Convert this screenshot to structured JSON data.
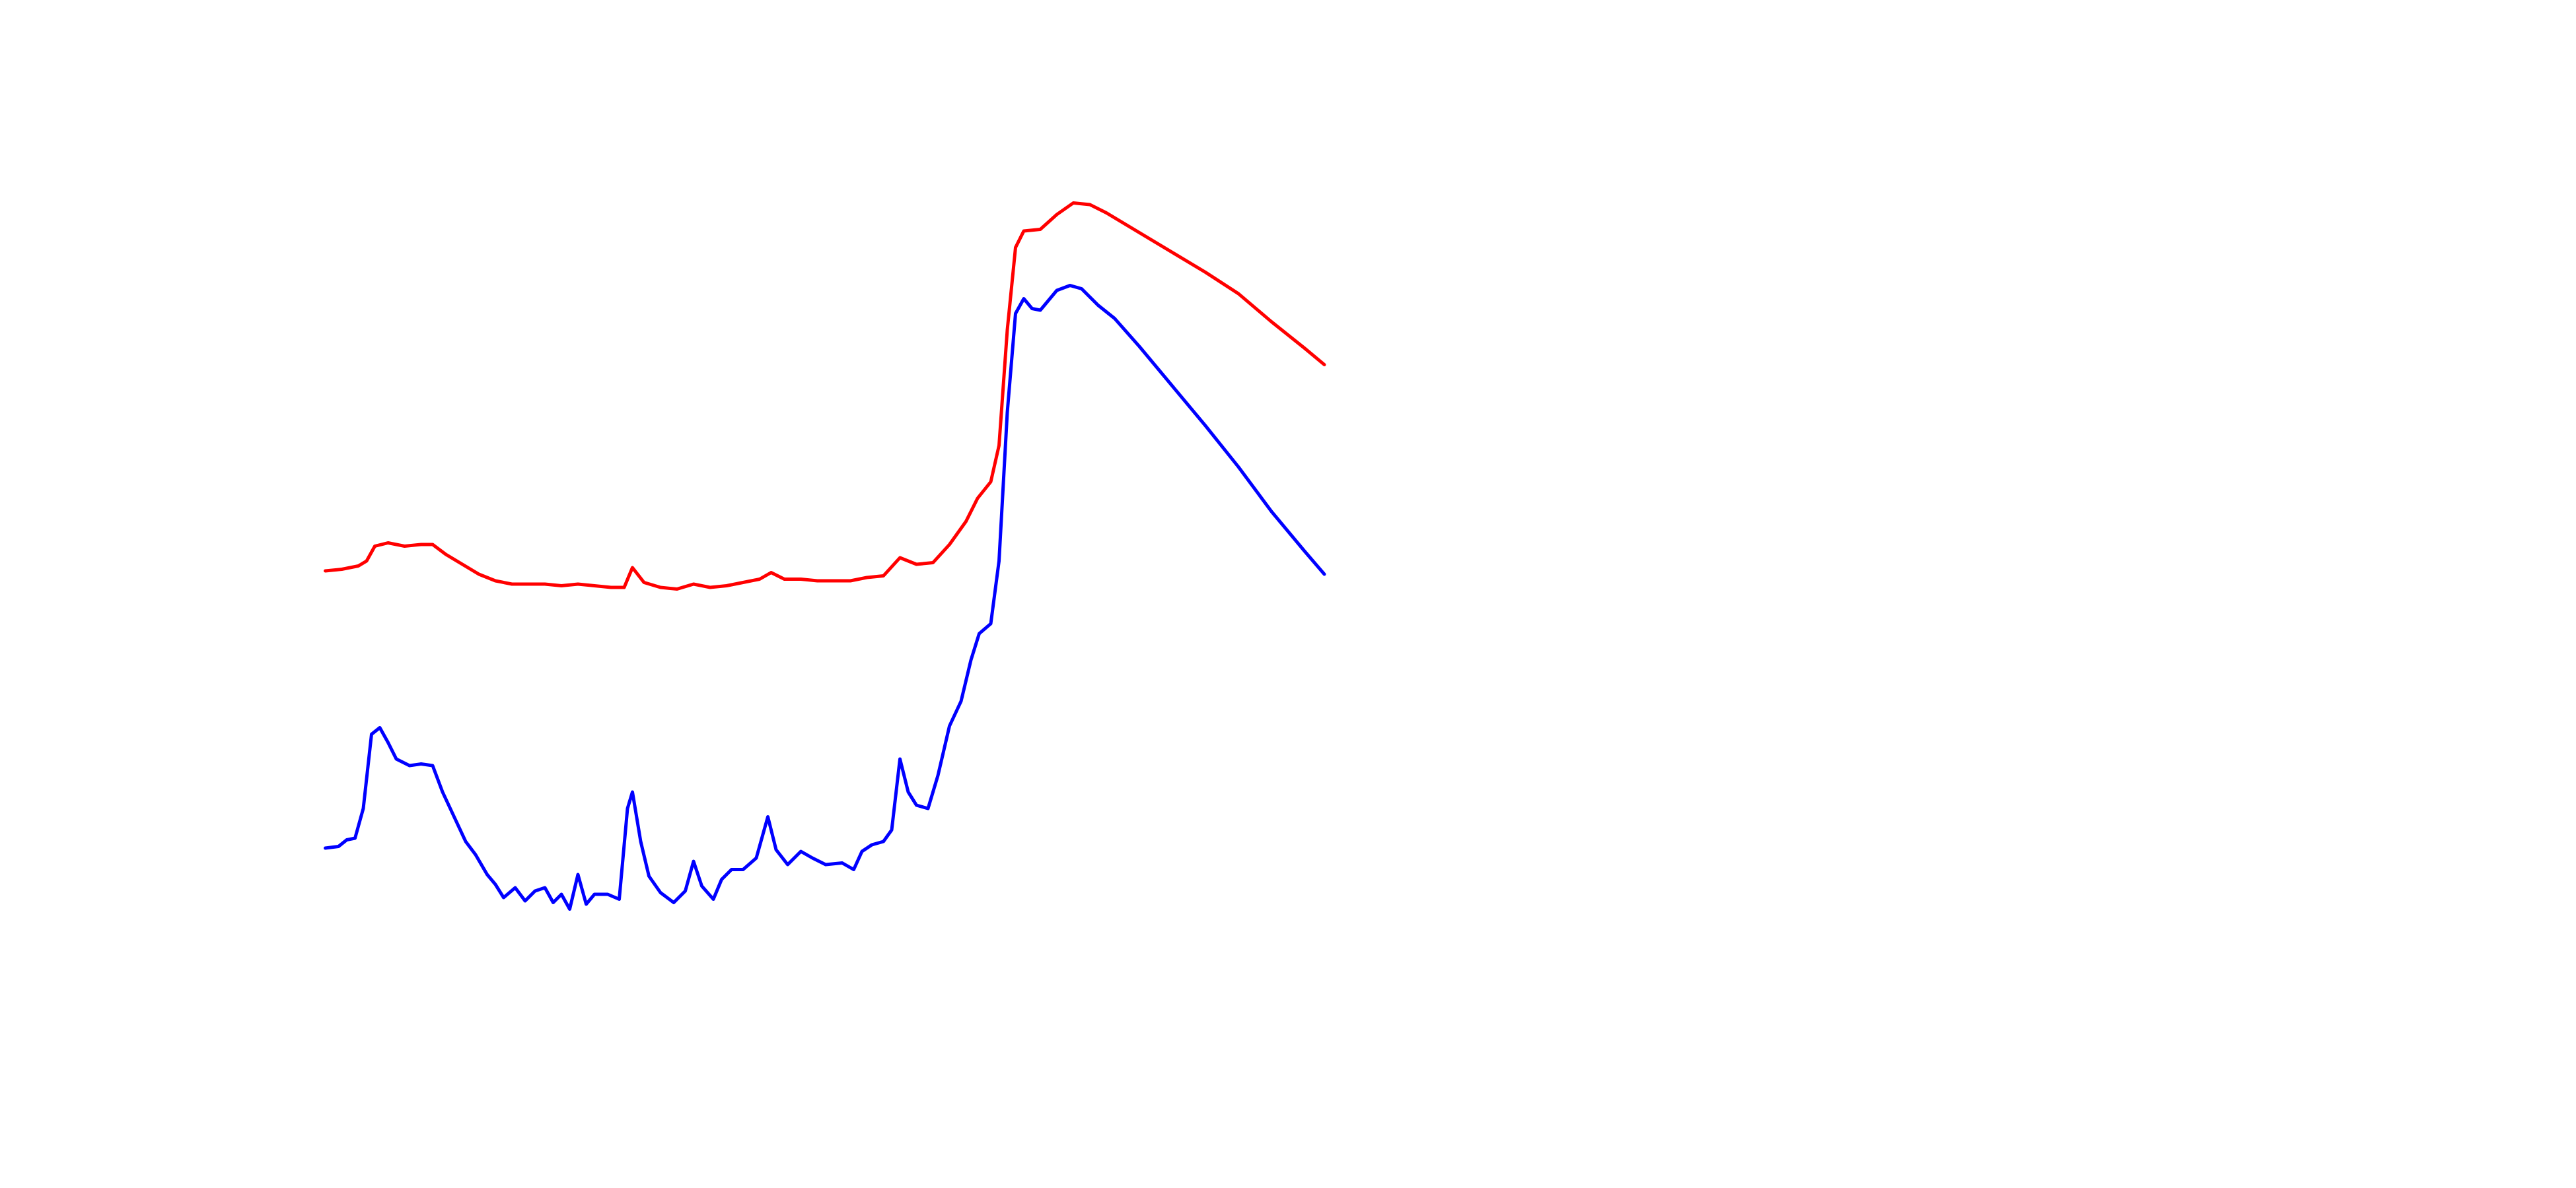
{
  "chart_data": {
    "type": "line",
    "xlim": [
      0,
      1560
    ],
    "ylim": [
      0,
      720
    ],
    "series": [
      {
        "color": "#ff0000",
        "x": [
          197,
          207,
          217,
          222,
          227,
          235,
          245,
          255,
          262,
          270,
          280,
          290,
          300,
          310,
          320,
          330,
          340,
          350,
          360,
          370,
          378,
          383,
          390,
          400,
          410,
          420,
          430,
          440,
          450,
          460,
          467,
          475,
          485,
          495,
          505,
          515,
          525,
          535,
          545,
          555,
          565,
          575,
          585,
          592,
          600,
          605,
          610,
          615,
          620,
          630,
          640,
          650,
          660,
          670,
          690,
          710,
          730,
          750,
          770,
          790,
          802
        ],
        "values": [
          374,
          375,
          377,
          380,
          389,
          391,
          389,
          390,
          390,
          384,
          378,
          372,
          368,
          366,
          366,
          366,
          365,
          366,
          365,
          364,
          364,
          376,
          367,
          364,
          363,
          366,
          364,
          365,
          367,
          369,
          373,
          369,
          369,
          368,
          368,
          368,
          370,
          371,
          382,
          378,
          379,
          390,
          404,
          418,
          428,
          450,
          520,
          570,
          580,
          581,
          590,
          597,
          596,
          591,
          579,
          567,
          555,
          542,
          525,
          509,
          499
        ]
      },
      {
        "color": "#0000ff",
        "x": [
          197,
          205,
          210,
          215,
          220,
          225,
          230,
          235,
          240,
          248,
          255,
          262,
          268,
          275,
          282,
          288,
          295,
          300,
          305,
          312,
          318,
          324,
          330,
          335,
          340,
          345,
          350,
          355,
          360,
          368,
          375,
          380,
          383,
          388,
          393,
          400,
          408,
          415,
          420,
          425,
          432,
          437,
          443,
          450,
          458,
          465,
          470,
          477,
          485,
          492,
          500,
          510,
          517,
          522,
          528,
          535,
          540,
          545,
          550,
          555,
          562,
          568,
          575,
          582,
          588,
          593,
          600,
          605,
          610,
          615,
          620,
          625,
          630,
          640,
          648,
          655,
          665,
          675,
          690,
          710,
          730,
          750,
          770,
          790,
          802
        ],
        "values": [
          206,
          207,
          211,
          212,
          230,
          275,
          279,
          270,
          260,
          256,
          257,
          256,
          240,
          225,
          210,
          202,
          190,
          184,
          176,
          182,
          174,
          180,
          182,
          173,
          178,
          169,
          190,
          172,
          178,
          178,
          175,
          230,
          240,
          210,
          189,
          179,
          173,
          180,
          198,
          183,
          175,
          187,
          193,
          193,
          200,
          225,
          205,
          196,
          204,
          200,
          196,
          197,
          193,
          204,
          208,
          210,
          217,
          260,
          240,
          232,
          230,
          250,
          280,
          295,
          320,
          336,
          342,
          380,
          470,
          530,
          539,
          533,
          532,
          544,
          547,
          545,
          535,
          527,
          510,
          486,
          462,
          437,
          410,
          386,
          372
        ]
      }
    ]
  }
}
